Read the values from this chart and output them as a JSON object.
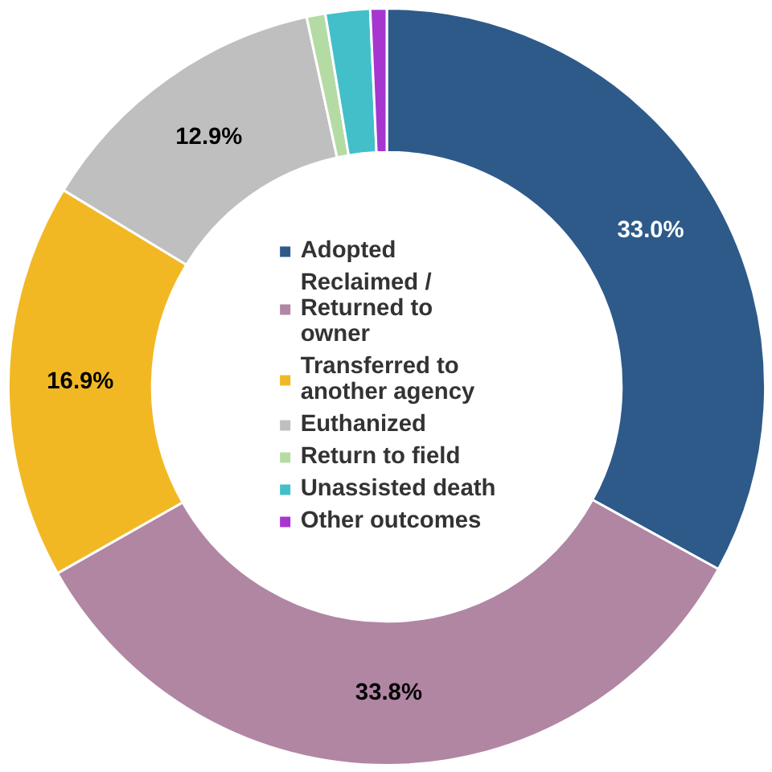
{
  "chart_data": {
    "type": "donut",
    "categories": [
      "Adopted",
      "Reclaimed / Returned to owner",
      "Transferred to another agency",
      "Euthanized",
      "Return to field",
      "Unassisted death",
      "Other outcomes"
    ],
    "values": [
      33.0,
      33.8,
      16.9,
      12.9,
      0.8,
      1.9,
      0.7
    ],
    "colors": [
      "#2e5a8a",
      "#b086a3",
      "#f2b824",
      "#bfbfbf",
      "#b5dba5",
      "#43bfc9",
      "#a636cf"
    ],
    "value_labels": [
      "33.0%",
      "33.8%",
      "16.9%",
      "12.9%",
      null,
      null,
      null
    ],
    "legend": "center"
  }
}
